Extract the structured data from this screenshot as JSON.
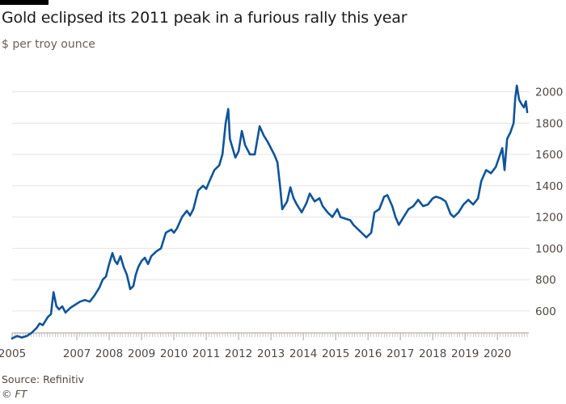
{
  "header": {
    "title": "Gold eclipsed its 2011 peak in a furious rally this year",
    "subtitle": "$ per troy ounce"
  },
  "footer": {
    "source": "Source: Refinitiv",
    "credit": "© FT"
  },
  "colors": {
    "line": "#0f5499",
    "gridline": "#e6e3e0",
    "axis": "#a6a29e",
    "text": "#4d4845"
  },
  "chart_data": {
    "type": "line",
    "title": "Gold eclipsed its 2011 peak in a furious rally this year",
    "ylabel": "$ per troy ounce",
    "xlabel": "",
    "xlim": [
      2005.0,
      2020.92
    ],
    "ylim": [
      460,
      2060
    ],
    "yticks": [
      600,
      800,
      1000,
      1200,
      1400,
      1600,
      1800,
      2000
    ],
    "xticks": [
      2005,
      2007,
      2008,
      2009,
      2010,
      2011,
      2012,
      2013,
      2014,
      2015,
      2016,
      2017,
      2018,
      2019,
      2020
    ],
    "grid": "horizontal",
    "y_axis_side": "right",
    "series": [
      {
        "name": "Gold price",
        "x": [
          2005.0,
          2005.15,
          2005.3,
          2005.45,
          2005.6,
          2005.75,
          2005.85,
          2005.95,
          2006.1,
          2006.2,
          2006.28,
          2006.37,
          2006.45,
          2006.55,
          2006.65,
          2006.8,
          2006.95,
          2007.1,
          2007.25,
          2007.4,
          2007.55,
          2007.7,
          2007.8,
          2007.9,
          2008.0,
          2008.1,
          2008.18,
          2008.25,
          2008.35,
          2008.45,
          2008.55,
          2008.65,
          2008.75,
          2008.82,
          2008.9,
          2009.0,
          2009.1,
          2009.2,
          2009.3,
          2009.45,
          2009.6,
          2009.75,
          2009.92,
          2010.0,
          2010.1,
          2010.25,
          2010.4,
          2010.5,
          2010.6,
          2010.75,
          2010.9,
          2011.0,
          2011.1,
          2011.25,
          2011.4,
          2011.5,
          2011.6,
          2011.68,
          2011.73,
          2011.8,
          2011.9,
          2012.0,
          2012.1,
          2012.2,
          2012.35,
          2012.5,
          2012.65,
          2012.78,
          2012.9,
          2013.0,
          2013.1,
          2013.2,
          2013.28,
          2013.35,
          2013.5,
          2013.6,
          2013.7,
          2013.8,
          2013.95,
          2014.1,
          2014.2,
          2014.35,
          2014.5,
          2014.6,
          2014.75,
          2014.9,
          2015.05,
          2015.15,
          2015.3,
          2015.45,
          2015.55,
          2015.7,
          2015.8,
          2015.95,
          2016.1,
          2016.2,
          2016.35,
          2016.5,
          2016.6,
          2016.75,
          2016.85,
          2016.95,
          2017.1,
          2017.25,
          2017.4,
          2017.55,
          2017.7,
          2017.85,
          2018.0,
          2018.1,
          2018.25,
          2018.4,
          2018.55,
          2018.65,
          2018.8,
          2018.95,
          2019.1,
          2019.25,
          2019.4,
          2019.5,
          2019.65,
          2019.8,
          2019.95,
          2020.05,
          2020.15,
          2020.22,
          2020.3,
          2020.4,
          2020.5,
          2020.55,
          2020.6,
          2020.67,
          2020.75,
          2020.82,
          2020.88,
          2020.92
        ],
        "values": [
          425,
          440,
          430,
          440,
          460,
          490,
          520,
          510,
          560,
          580,
          720,
          630,
          610,
          630,
          590,
          620,
          640,
          660,
          670,
          660,
          700,
          750,
          800,
          820,
          900,
          970,
          920,
          900,
          950,
          880,
          830,
          740,
          760,
          830,
          880,
          920,
          940,
          900,
          950,
          980,
          1000,
          1100,
          1120,
          1100,
          1130,
          1200,
          1240,
          1210,
          1250,
          1370,
          1400,
          1380,
          1430,
          1500,
          1530,
          1600,
          1800,
          1890,
          1700,
          1650,
          1580,
          1620,
          1750,
          1660,
          1600,
          1600,
          1780,
          1720,
          1680,
          1640,
          1600,
          1550,
          1400,
          1250,
          1300,
          1390,
          1320,
          1280,
          1230,
          1290,
          1350,
          1300,
          1320,
          1270,
          1230,
          1200,
          1250,
          1200,
          1190,
          1180,
          1150,
          1120,
          1100,
          1070,
          1100,
          1230,
          1250,
          1330,
          1340,
          1270,
          1200,
          1150,
          1200,
          1250,
          1270,
          1310,
          1270,
          1280,
          1320,
          1330,
          1320,
          1300,
          1220,
          1200,
          1230,
          1280,
          1310,
          1280,
          1320,
          1430,
          1500,
          1480,
          1520,
          1580,
          1640,
          1500,
          1700,
          1740,
          1800,
          1960,
          2040,
          1950,
          1920,
          1900,
          1940,
          1870
        ]
      }
    ]
  }
}
